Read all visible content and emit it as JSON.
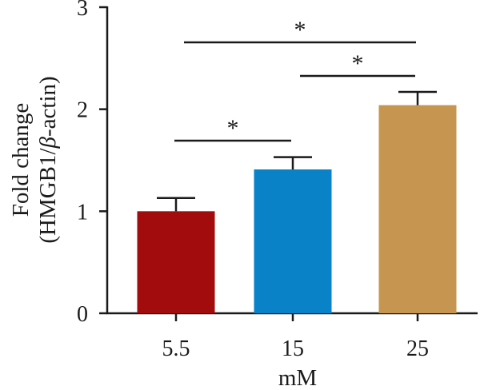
{
  "chart_data": {
    "type": "bar",
    "categories": [
      "5.5",
      "15",
      "25"
    ],
    "values": [
      1.0,
      1.41,
      2.04
    ],
    "errors": [
      0.13,
      0.12,
      0.13
    ],
    "colors": [
      "#a20c0c",
      "#0a82c8",
      "#c6954f"
    ],
    "xlabel": "mM",
    "ylabel_line1": "Fold change",
    "ylabel_line2_prefix": "(HMGB1/",
    "ylabel_line2_greek": "β",
    "ylabel_line2_suffix": "-actin)",
    "ylim": [
      0,
      3
    ],
    "yticks": [
      "0",
      "1",
      "2",
      "3"
    ],
    "grid": false,
    "significance": [
      {
        "from": 0,
        "to": 1,
        "label": "*"
      },
      {
        "from": 1,
        "to": 2,
        "label": "*"
      },
      {
        "from": 0,
        "to": 2,
        "label": "*"
      }
    ]
  }
}
